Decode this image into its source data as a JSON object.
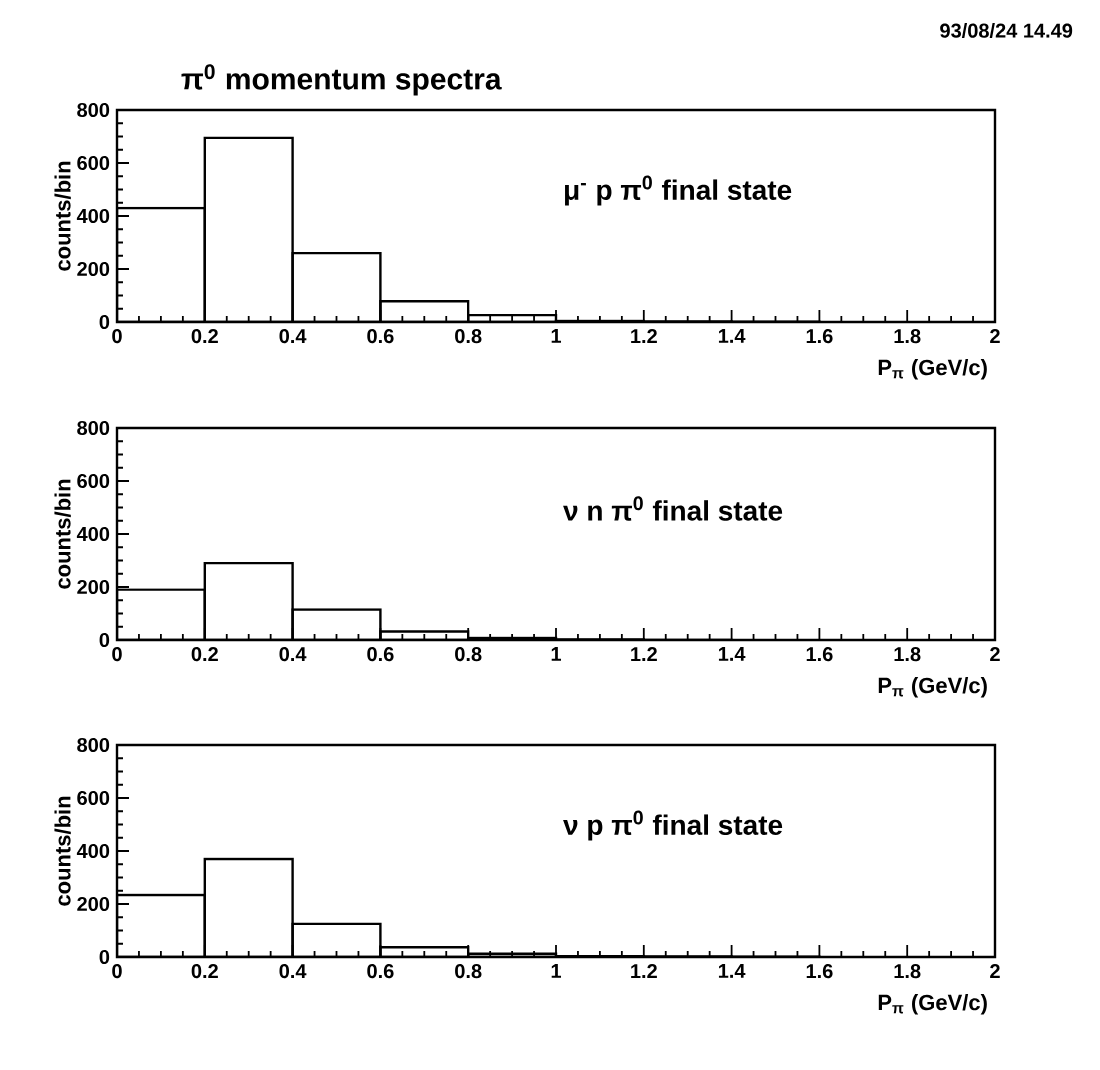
{
  "chart_data": [
    {
      "type": "histogram",
      "title": "π$^{0}$ momentum spectra",
      "xlabel": "P$_{π}$ (GeV/c)",
      "ylabel": "counts/bin",
      "annotations": [
        "μ$^{-}$ p π$^{0}$ final state",
        "93/08/24  14.49"
      ],
      "bins": [
        0,
        0.2,
        0.4,
        0.6,
        0.8,
        1,
        1.2,
        1.4,
        1.6,
        1.8,
        2
      ],
      "values": [
        430,
        695,
        260,
        78,
        26,
        4,
        2,
        1,
        0,
        0
      ],
      "color": "#000000",
      "xlim": [
        0,
        2
      ],
      "xticks": [
        0,
        0.2,
        0.4,
        0.6,
        0.8,
        1,
        1.2,
        1.4,
        1.6,
        1.8,
        2
      ],
      "ylim": [
        0,
        800
      ],
      "yticks": [
        0,
        200,
        400,
        600,
        800
      ],
      "grid": false
    },
    {
      "type": "histogram",
      "xlabel": "P$_{π}$ (GeV/c)",
      "ylabel": "counts/bin",
      "annotations": [
        "ν n π$^{0}$ final state"
      ],
      "bins": [
        0,
        0.2,
        0.4,
        0.6,
        0.8,
        1,
        1.2,
        1.4,
        1.6,
        1.8,
        2
      ],
      "values": [
        190,
        290,
        115,
        32,
        8,
        2,
        1,
        0,
        0,
        0
      ],
      "color": "#000000",
      "xlim": [
        0,
        2
      ],
      "xticks": [
        0,
        0.2,
        0.4,
        0.6,
        0.8,
        1,
        1.2,
        1.4,
        1.6,
        1.8,
        2
      ],
      "ylim": [
        0,
        800
      ],
      "yticks": [
        0,
        200,
        400,
        600,
        800
      ],
      "grid": false
    },
    {
      "type": "histogram",
      "xlabel": "P$_{π}$ (GeV/c)",
      "ylabel": "counts/bin",
      "annotations": [
        "ν p π$^{0}$ final state"
      ],
      "bins": [
        0,
        0.2,
        0.4,
        0.6,
        0.8,
        1,
        1.2,
        1.4,
        1.6,
        1.8,
        2
      ],
      "values": [
        234,
        370,
        125,
        37,
        12,
        3,
        2,
        1,
        0,
        0
      ],
      "color": "#000000",
      "xlim": [
        0,
        2
      ],
      "xticks": [
        0,
        0.2,
        0.4,
        0.6,
        0.8,
        1,
        1.2,
        1.4,
        1.6,
        1.8,
        2
      ],
      "ylim": [
        0,
        800
      ],
      "yticks": [
        0,
        200,
        400,
        600,
        800
      ],
      "grid": false
    }
  ]
}
